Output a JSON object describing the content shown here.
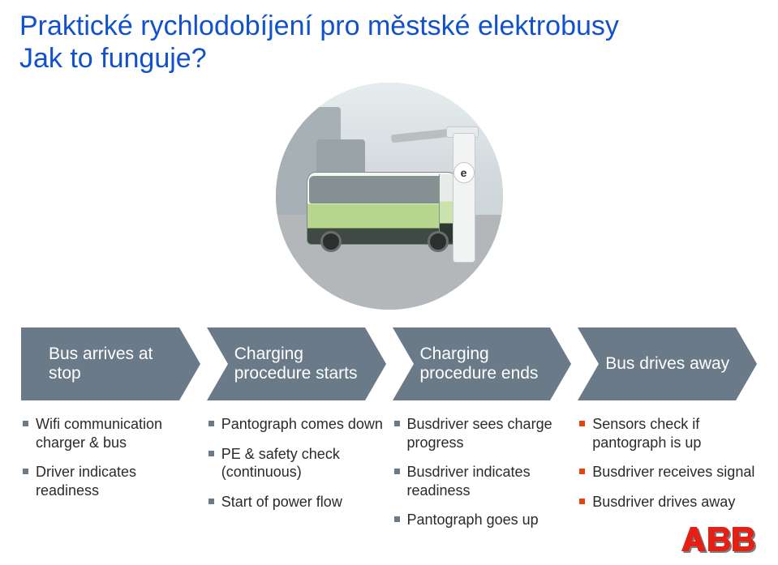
{
  "title_line1": "Praktické rychlodobíjení pro městské elektrobusy",
  "title_line2": "Jak to funguje?",
  "title_color": "#1152cc",
  "elogo_text": "e",
  "stages": [
    {
      "label": "Bus arrives at stop",
      "color": "#6b7a88",
      "bullet_color": "#6b7a88",
      "bullets": [
        "Wifi communication charger & bus",
        "Driver indicates readiness"
      ]
    },
    {
      "label": "Charging procedure starts",
      "color": "#6b7a88",
      "bullet_color": "#6b7a88",
      "bullets": [
        "Pantograph comes down",
        "PE & safety check (continuous)",
        "Start of power flow"
      ]
    },
    {
      "label": "Charging procedure ends",
      "color": "#6b7a88",
      "bullet_color": "#6b7a88",
      "bullets": [
        "Busdriver sees charge progress",
        "Busdriver indicates readiness",
        "Pantograph goes up"
      ]
    },
    {
      "label": "Bus drives away",
      "color": "#6b7a88",
      "bullet_color": "#e64510",
      "bullets": [
        "Sensors check if pantograph is up",
        "Busdriver receives signal",
        "Busdriver drives away"
      ]
    }
  ],
  "logo": {
    "text": "ABB",
    "primary": "#e41f13",
    "shadow": "#7a7f82"
  }
}
